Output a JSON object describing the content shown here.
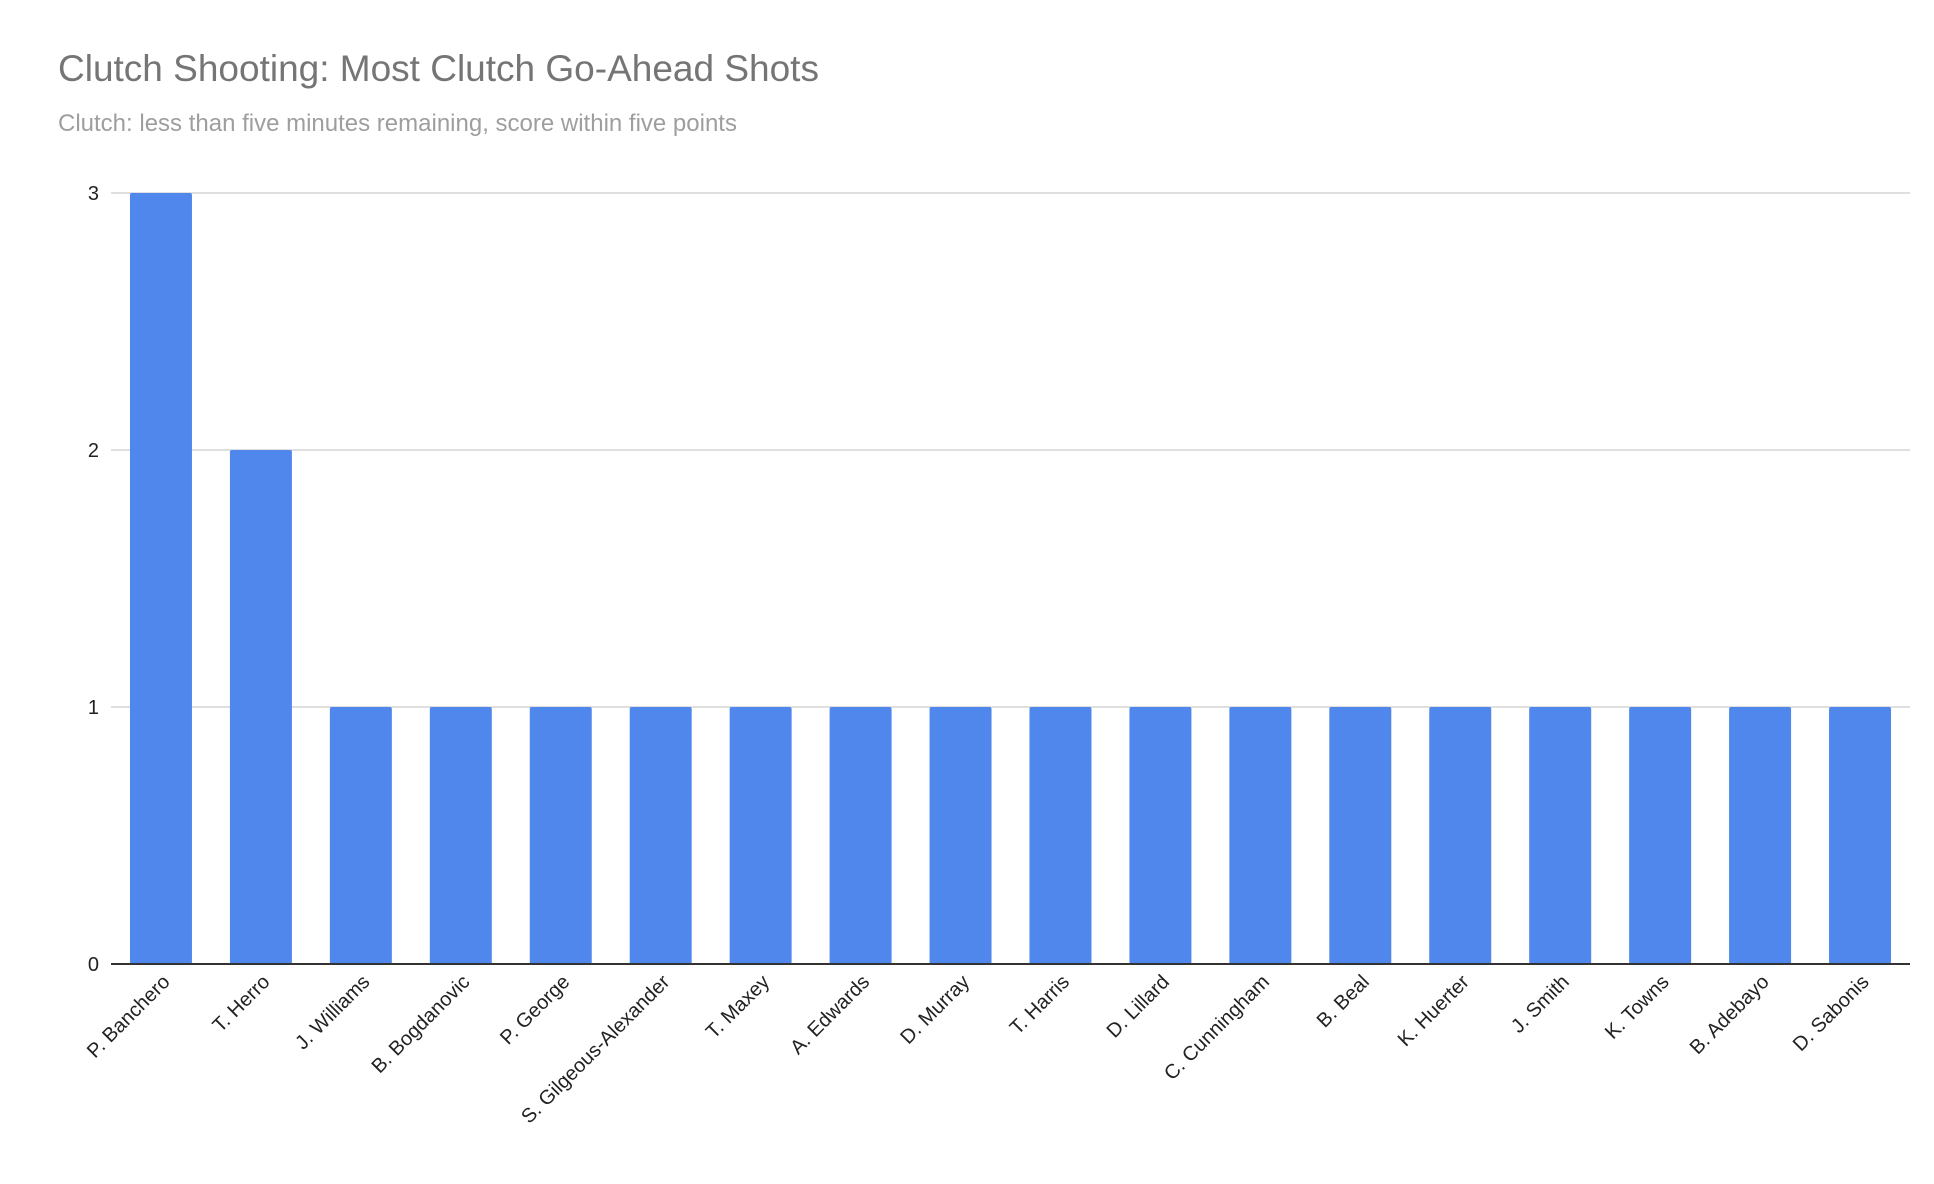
{
  "chart_data": {
    "type": "bar",
    "title": "Clutch Shooting: Most Clutch Go-Ahead Shots",
    "subtitle": "Clutch: less than five minutes remaining, score within five points",
    "xlabel": "",
    "ylabel": "",
    "ylim": [
      0,
      3
    ],
    "yticks": [
      0,
      1,
      2,
      3
    ],
    "grid": true,
    "legend": "none",
    "bar_color": "#5087ec",
    "categories": [
      "P. Banchero",
      "T. Herro",
      "J. Williams",
      "B. Bogdanovic",
      "P. George",
      "S. Gilgeous-Alexander",
      "T. Maxey",
      "A. Edwards",
      "D. Murray",
      "T. Harris",
      "D. Lillard",
      "C. Cunningham",
      "B. Beal",
      "K. Huerter",
      "J. Smith",
      "K. Towns",
      "B. Adebayo",
      "D. Sabonis"
    ],
    "values": [
      3,
      2,
      1,
      1,
      1,
      1,
      1,
      1,
      1,
      1,
      1,
      1,
      1,
      1,
      1,
      1,
      1,
      1
    ]
  }
}
